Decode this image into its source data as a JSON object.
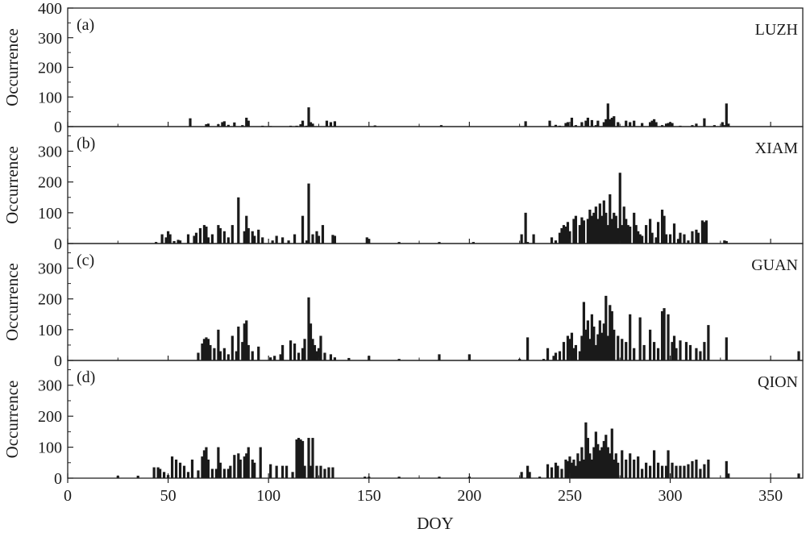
{
  "figure": {
    "xlabel": "DOY",
    "x_ticks": [
      0,
      50,
      100,
      150,
      200,
      250,
      300,
      350
    ],
    "xlim": [
      0,
      366
    ]
  },
  "chart_data": [
    {
      "type": "bar",
      "panel_tag": "(a)",
      "station": "LUZH",
      "ylabel": "Occurrence",
      "ylim": [
        0,
        400
      ],
      "y_ticks": [
        0,
        100,
        200,
        300,
        400
      ],
      "series": [
        {
          "x": [
            61,
            69,
            70,
            75,
            77,
            78,
            80,
            83,
            87,
            89,
            90,
            97,
            101,
            111,
            114,
            116,
            117,
            119,
            120,
            121,
            122,
            129,
            131,
            133,
            153,
            186,
            228,
            240,
            243,
            245,
            248,
            249,
            251,
            253,
            256,
            258,
            259,
            261,
            263,
            264,
            267,
            268,
            269,
            270,
            271,
            272,
            274,
            278,
            280,
            282,
            286,
            290,
            291,
            292,
            293,
            296,
            298,
            299,
            300,
            301,
            305,
            311,
            313,
            317,
            322,
            326,
            327,
            328,
            329
          ],
          "values": [
            28,
            8,
            10,
            8,
            15,
            18,
            6,
            14,
            5,
            30,
            20,
            3,
            2,
            3,
            3,
            8,
            20,
            3,
            65,
            15,
            10,
            20,
            15,
            18,
            4,
            5,
            18,
            20,
            6,
            3,
            12,
            15,
            30,
            5,
            15,
            20,
            30,
            22,
            5,
            20,
            15,
            25,
            78,
            25,
            30,
            35,
            15,
            20,
            15,
            20,
            12,
            15,
            20,
            25,
            15,
            5,
            10,
            12,
            15,
            12,
            3,
            5,
            10,
            28,
            5,
            15,
            5,
            78,
            10
          ]
        }
      ]
    },
    {
      "type": "bar",
      "panel_tag": "(b)",
      "station": "XIAM",
      "ylabel": "Occurrence",
      "ylim": [
        0,
        380
      ],
      "y_ticks": [
        0,
        100,
        200,
        300
      ],
      "series": [
        {
          "x": [
            44,
            47,
            49,
            50,
            51,
            53,
            55,
            56,
            60,
            63,
            64,
            66,
            68,
            69,
            70,
            72,
            75,
            76,
            78,
            80,
            82,
            85,
            88,
            89,
            90,
            92,
            93,
            95,
            97,
            102,
            104,
            107,
            110,
            113,
            117,
            119,
            120,
            122,
            124,
            125,
            127,
            132,
            133,
            149,
            150,
            165,
            185,
            202,
            226,
            228,
            229,
            232,
            241,
            243,
            245,
            246,
            247,
            248,
            249,
            250,
            252,
            253,
            255,
            256,
            257,
            259,
            260,
            261,
            262,
            263,
            264,
            265,
            266,
            267,
            268,
            269,
            270,
            271,
            272,
            273,
            274,
            275,
            276,
            277,
            278,
            279,
            280,
            282,
            283,
            284,
            285,
            286,
            288,
            290,
            291,
            293,
            294,
            296,
            297,
            298,
            300,
            302,
            304,
            305,
            307,
            309,
            311,
            313,
            314,
            316,
            317,
            318,
            327,
            328
          ],
          "values": [
            5,
            30,
            20,
            40,
            30,
            8,
            12,
            10,
            30,
            25,
            35,
            50,
            60,
            55,
            20,
            30,
            60,
            50,
            40,
            20,
            60,
            150,
            40,
            90,
            50,
            40,
            25,
            45,
            20,
            10,
            25,
            20,
            10,
            30,
            90,
            10,
            195,
            30,
            40,
            25,
            60,
            28,
            25,
            20,
            15,
            5,
            5,
            5,
            30,
            100,
            5,
            30,
            20,
            10,
            35,
            50,
            60,
            55,
            70,
            40,
            80,
            90,
            60,
            85,
            75,
            80,
            110,
            90,
            100,
            120,
            80,
            130,
            90,
            140,
            100,
            60,
            160,
            80,
            100,
            90,
            50,
            230,
            60,
            120,
            80,
            60,
            55,
            100,
            60,
            40,
            30,
            25,
            60,
            80,
            35,
            20,
            70,
            110,
            90,
            30,
            30,
            65,
            15,
            35,
            30,
            10,
            40,
            45,
            35,
            75,
            70,
            75,
            10,
            8
          ]
        }
      ]
    },
    {
      "type": "bar",
      "panel_tag": "(c)",
      "station": "GUAN",
      "ylabel": "Occurrence",
      "ylim": [
        0,
        380
      ],
      "y_ticks": [
        0,
        100,
        200,
        300
      ],
      "series": [
        {
          "x": [
            65,
            67,
            68,
            69,
            70,
            71,
            73,
            75,
            76,
            78,
            80,
            82,
            84,
            85,
            87,
            88,
            89,
            90,
            92,
            95,
            101,
            103,
            106,
            107,
            111,
            113,
            115,
            117,
            118,
            120,
            121,
            122,
            123,
            124,
            125,
            126,
            128,
            131,
            133,
            140,
            150,
            165,
            185,
            200,
            225,
            229,
            237,
            239,
            242,
            243,
            245,
            247,
            249,
            250,
            251,
            252,
            253,
            255,
            256,
            257,
            258,
            259,
            260,
            261,
            262,
            263,
            264,
            265,
            266,
            267,
            268,
            269,
            270,
            271,
            272,
            274,
            276,
            278,
            280,
            282,
            285,
            287,
            290,
            292,
            294,
            296,
            297,
            299,
            301,
            302,
            303,
            305,
            308,
            310,
            313,
            315,
            317,
            319,
            328,
            364
          ],
          "values": [
            25,
            55,
            70,
            75,
            70,
            50,
            40,
            100,
            30,
            40,
            20,
            80,
            30,
            110,
            60,
            120,
            130,
            50,
            30,
            45,
            10,
            15,
            20,
            50,
            65,
            55,
            25,
            40,
            70,
            205,
            120,
            70,
            50,
            30,
            40,
            80,
            25,
            20,
            10,
            8,
            15,
            5,
            20,
            20,
            5,
            75,
            5,
            40,
            15,
            25,
            30,
            60,
            80,
            70,
            90,
            40,
            50,
            30,
            80,
            190,
            100,
            130,
            70,
            150,
            110,
            50,
            85,
            130,
            90,
            120,
            210,
            80,
            180,
            160,
            100,
            80,
            70,
            60,
            150,
            40,
            140,
            50,
            100,
            60,
            40,
            160,
            170,
            150,
            60,
            80,
            40,
            65,
            60,
            50,
            40,
            30,
            60,
            115,
            75,
            30
          ]
        }
      ]
    },
    {
      "type": "bar",
      "panel_tag": "(d)",
      "station": "QION",
      "ylabel": "Occurrence",
      "ylim": [
        0,
        380
      ],
      "y_ticks": [
        0,
        100,
        200,
        300
      ],
      "series": [
        {
          "x": [
            25,
            35,
            43,
            45,
            46,
            48,
            50,
            52,
            54,
            56,
            58,
            60,
            62,
            65,
            67,
            68,
            69,
            70,
            72,
            74,
            75,
            76,
            78,
            80,
            81,
            83,
            85,
            86,
            88,
            89,
            90,
            92,
            93,
            96,
            101,
            104,
            107,
            109,
            112,
            114,
            115,
            116,
            117,
            118,
            120,
            121,
            122,
            124,
            126,
            128,
            130,
            132,
            148,
            150,
            165,
            185,
            200,
            226,
            229,
            230,
            235,
            239,
            241,
            243,
            244,
            246,
            248,
            249,
            250,
            251,
            252,
            253,
            254,
            255,
            256,
            257,
            258,
            259,
            260,
            261,
            262,
            263,
            264,
            265,
            266,
            267,
            268,
            269,
            270,
            271,
            272,
            273,
            274,
            276,
            278,
            280,
            282,
            284,
            286,
            288,
            290,
            292,
            294,
            296,
            298,
            299,
            301,
            303,
            305,
            307,
            309,
            311,
            313,
            315,
            317,
            319,
            328,
            329,
            364
          ],
          "values": [
            8,
            8,
            35,
            35,
            30,
            20,
            10,
            70,
            60,
            50,
            40,
            20,
            60,
            25,
            70,
            90,
            100,
            60,
            30,
            30,
            100,
            50,
            30,
            30,
            40,
            75,
            80,
            60,
            70,
            80,
            100,
            60,
            50,
            100,
            45,
            40,
            40,
            40,
            20,
            125,
            130,
            125,
            120,
            40,
            130,
            40,
            130,
            40,
            40,
            30,
            35,
            35,
            5,
            5,
            5,
            5,
            5,
            20,
            40,
            20,
            5,
            45,
            35,
            50,
            40,
            30,
            60,
            55,
            70,
            50,
            60,
            40,
            80,
            55,
            100,
            60,
            180,
            130,
            80,
            60,
            100,
            150,
            110,
            90,
            100,
            120,
            140,
            100,
            80,
            160,
            60,
            80,
            50,
            90,
            60,
            80,
            60,
            70,
            30,
            50,
            40,
            90,
            50,
            40,
            40,
            90,
            50,
            40,
            40,
            40,
            45,
            55,
            60,
            30,
            45,
            60,
            55,
            15,
            15
          ]
        }
      ]
    }
  ]
}
